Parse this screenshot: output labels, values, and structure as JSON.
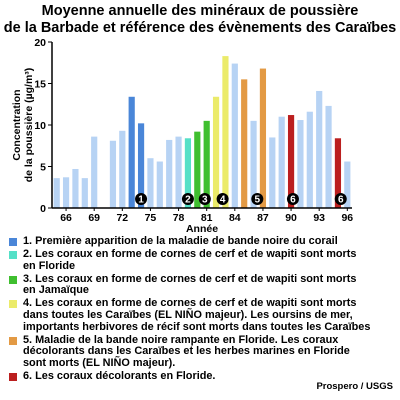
{
  "chart_data": {
    "type": "bar",
    "title": "Moyenne annuelle des minéraux de poussière\nde la Barbade et référence des évènements des Caraïbes",
    "xlabel": "Année",
    "ylabel": "Concentration\nde la poussière (µg/m³)",
    "ylim": [
      0,
      20
    ],
    "yticks": [
      0,
      5,
      10,
      15,
      20
    ],
    "xticks": [
      "66",
      "69",
      "72",
      "75",
      "78",
      "81",
      "84",
      "87",
      "90",
      "93",
      "96"
    ],
    "grid": false,
    "default_color": "#b7d3f4",
    "x": [
      1965,
      1966,
      1967,
      1968,
      1969,
      1971,
      1972,
      1973,
      1974,
      1975,
      1976,
      1977,
      1978,
      1979,
      1980,
      1981,
      1982,
      1983,
      1984,
      1985,
      1986,
      1987,
      1988,
      1989,
      1990,
      1991,
      1992,
      1993,
      1994,
      1995,
      1996
    ],
    "values": [
      3.6,
      3.7,
      4.7,
      3.6,
      8.6,
      8.1,
      9.3,
      13.4,
      10.2,
      6.0,
      5.6,
      8.2,
      8.6,
      8.4,
      9.2,
      10.5,
      13.4,
      18.3,
      17.4,
      15.5,
      10.5,
      16.8,
      8.5,
      11.0,
      11.2,
      10.6,
      11.6,
      14.1,
      12.3,
      8.4,
      5.6
    ],
    "highlights": [
      {
        "x": 1973,
        "event": 1
      },
      {
        "x": 1974,
        "event": 1
      },
      {
        "x": 1979,
        "event": 2
      },
      {
        "x": 1980,
        "event": 3
      },
      {
        "x": 1981,
        "event": 3
      },
      {
        "x": 1982,
        "event": 4
      },
      {
        "x": 1983,
        "event": 4
      },
      {
        "x": 1985,
        "event": 5
      },
      {
        "x": 1987,
        "event": 5
      },
      {
        "x": 1990,
        "event": 6
      },
      {
        "x": 1995,
        "event": 6
      }
    ],
    "markers": [
      {
        "label": "1",
        "x": 1974
      },
      {
        "label": "2",
        "x": 1979
      },
      {
        "label": "3",
        "x": 1980.8
      },
      {
        "label": "4",
        "x": 1982.7
      },
      {
        "label": "5",
        "x": 1986.4
      },
      {
        "label": "6",
        "x": 1990.2
      },
      {
        "label": "6",
        "x": 1995.3
      }
    ]
  },
  "legend": [
    {
      "color": "#4a86d8",
      "text": "1. Première apparition de la maladie de bande noire du corail"
    },
    {
      "color": "#55e0c7",
      "text": "2. Les coraux en forme de cornes de cerf et de wapiti sont morts\n   en Floride"
    },
    {
      "color": "#3fbf2f",
      "text": "3. Les coraux en forme de cornes de cerf et de wapiti sont morts\n   en Jamaïque"
    },
    {
      "color": "#ebeb6a",
      "text": "4. Les coraux en forme de cornes de cerf et de wapiti sont morts\n   dans toutes les Caraïbes (EL NIÑO majeur). Les oursins de mer,\n   importants herbivores de récif sont morts dans toutes les Caraïbes"
    },
    {
      "color": "#e39a44",
      "text": "5. Maladie de la bande noire rampante en Floride. Les coraux\n   décolorants dans les Caraïbes et les herbes marines en Floride\n   sont morts (EL NIÑO majeur)."
    },
    {
      "color": "#bb1f1f",
      "text": "6. Les coraux décolorants en Floride."
    }
  ],
  "credit": "Prospero / USGS"
}
